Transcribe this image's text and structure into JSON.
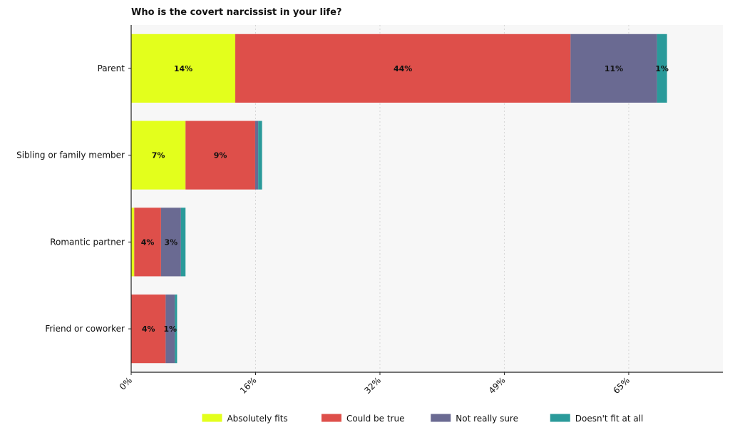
{
  "chart_data": {
    "type": "bar",
    "orientation": "horizontal",
    "stacked": true,
    "title": "Who is the covert narcissist in your life?",
    "categories": [
      "Parent",
      "Sibling or family member",
      "Romantic partner",
      "Friend or coworker"
    ],
    "series": [
      {
        "name": "Absolutely fits",
        "color": "#e3ff1c",
        "values": [
          13.6,
          7.1,
          0.4,
          0.0
        ]
      },
      {
        "name": "Could be true",
        "color": "#de4f4a",
        "values": [
          43.8,
          9.1,
          3.5,
          4.5
        ]
      },
      {
        "name": "Not really sure",
        "color": "#6a6a92",
        "values": [
          11.3,
          0.4,
          2.6,
          1.2
        ]
      },
      {
        "name": "Doesn't fit at all",
        "color": "#2a9a9a",
        "values": [
          1.3,
          0.5,
          0.6,
          0.3
        ]
      }
    ],
    "segment_labels": [
      [
        "14%",
        "44%",
        "11%",
        "1%"
      ],
      [
        "7%",
        "9%",
        "",
        ""
      ],
      [
        "",
        "4%",
        "3%",
        ""
      ],
      [
        "",
        "4%",
        "1%",
        ""
      ]
    ],
    "xticks": [
      0,
      16.25,
      32.5,
      48.75,
      65
    ],
    "xtick_labels": [
      "0%",
      "16%",
      "32%",
      "49%",
      "65%"
    ],
    "xlim": [
      0,
      77.3
    ],
    "grid": "vertical-dotted",
    "legend_position": "bottom-center"
  }
}
